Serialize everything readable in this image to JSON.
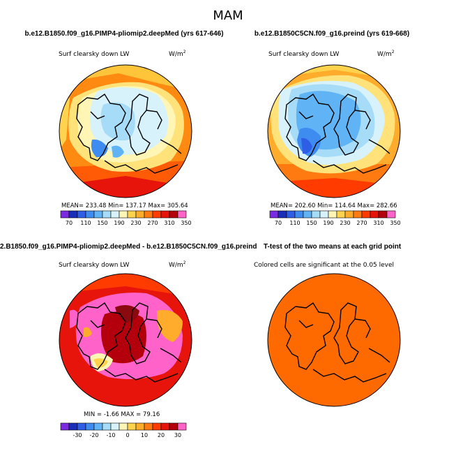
{
  "title": "MAM",
  "panels": [
    {
      "id": "p1",
      "title": "b.e12.B1850.f09_g16.PIMP4-pliomip2.deepMed (yrs 617-646)",
      "variable": "Surf clearsky down LW",
      "units_base": "W/m",
      "units_exp": "2",
      "stats": "MEAN= 233.48   Min= 137.17   Max= 305.64"
    },
    {
      "id": "p2",
      "title": "b.e12.B1850C5CN.f09_g16.preind (yrs 619-668)",
      "variable": "Surf clearsky down LW",
      "units_base": "W/m",
      "units_exp": "2",
      "stats": "MEAN= 202.60   Min= 114.64   Max= 282.66"
    },
    {
      "id": "p3",
      "title": "2.B1850.f09_g16.PIMP4-pliomip2.deepMed - b.e12.B1850C5CN.f09_g16.preind",
      "variable": "Surf clearsky down LW",
      "units_base": "W/m",
      "units_exp": "2",
      "stats": "MIN =  -1.66 MAX =  79.16"
    },
    {
      "id": "p4",
      "title": "T-test of the two means at each grid point",
      "variable": "Colored cells are significant at the 0.05 level"
    }
  ],
  "chart_data": [
    {
      "type": "heatmap",
      "title": "b.e12.B1850.f09_g16.PIMP4-pliomip2.deepMed (yrs 617-646)",
      "colorbar_ticks": [
        "70",
        "110",
        "150",
        "190",
        "230",
        "270",
        "310",
        "350"
      ],
      "colorbar_colors": [
        "#7a2be2",
        "#1a2fb8",
        "#2f5ee6",
        "#3f8cf0",
        "#60b4f5",
        "#a6dcf8",
        "#d8f2fb",
        "#fff6b5",
        "#ffd34d",
        "#ffab2b",
        "#ff7a10",
        "#ff3b00",
        "#e6140b",
        "#b3000c",
        "#ff62c8"
      ],
      "mean": 233.48,
      "min": 137.17,
      "max": 305.64
    },
    {
      "type": "heatmap",
      "title": "b.e12.B1850C5CN.f09_g16.preind (yrs 619-668)",
      "colorbar_ticks": [
        "70",
        "110",
        "150",
        "190",
        "230",
        "270",
        "310",
        "350"
      ],
      "colorbar_colors": [
        "#7a2be2",
        "#1a2fb8",
        "#2f5ee6",
        "#3f8cf0",
        "#60b4f5",
        "#a6dcf8",
        "#d8f2fb",
        "#fff6b5",
        "#ffd34d",
        "#ffab2b",
        "#ff7a10",
        "#ff3b00",
        "#e6140b",
        "#b3000c",
        "#ff62c8"
      ],
      "mean": 202.6,
      "min": 114.64,
      "max": 282.66
    },
    {
      "type": "heatmap",
      "title": "2.B1850.f09_g16.PIMP4-pliomip2.deepMed - b.e12.B1850C5CN.f09_g16.preind",
      "colorbar_ticks": [
        "-30",
        "-20",
        "-10",
        "0",
        "10",
        "20",
        "30"
      ],
      "colorbar_colors": [
        "#7a2be2",
        "#1a2fb8",
        "#2f5ee6",
        "#3f8cf0",
        "#60b4f5",
        "#a6dcf8",
        "#d8f2fb",
        "#fff6b5",
        "#ffd34d",
        "#ffab2b",
        "#ff7a10",
        "#ff3b00",
        "#e6140b",
        "#b3000c",
        "#ff62c8"
      ],
      "min": -1.66,
      "max": 79.16
    },
    {
      "type": "heatmap",
      "title": "T-test of the two means at each grid point",
      "fill_color": "#ff6a00"
    }
  ]
}
